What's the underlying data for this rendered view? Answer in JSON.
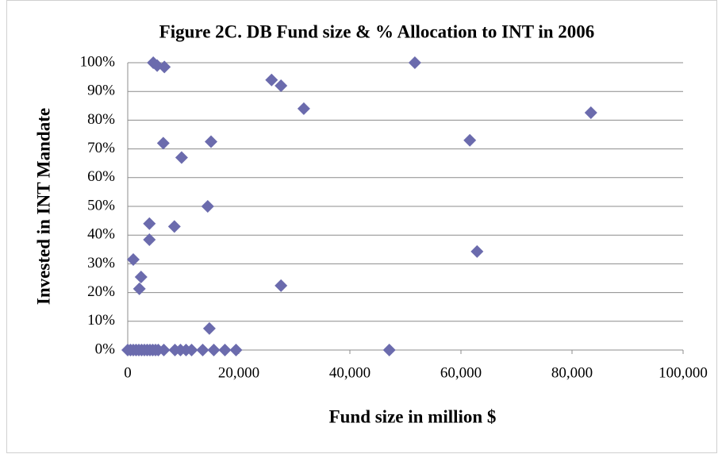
{
  "chart_data": {
    "type": "scatter",
    "title": "Figure 2C. DB Fund size & % Allocation to INT in 2006",
    "x_label": "Fund size in million $",
    "y_label": "Invested in INT Mandate",
    "color": "#6b6bad",
    "grid": true,
    "xlim": [
      0,
      100000
    ],
    "ylim": [
      0,
      100
    ],
    "xticks": [
      0,
      {
        "value": 20000,
        "label": "20,000"
      },
      {
        "value": 40000,
        "label": "40,000"
      },
      {
        "value": 60000,
        "label": "60,000"
      },
      {
        "value": 80000,
        "label": "80,000"
      },
      {
        "value": 100000,
        "label": "100,000"
      }
    ],
    "yticks": [
      {
        "value": 0,
        "label": "0%"
      },
      {
        "value": 10,
        "label": "10%"
      },
      {
        "value": 20,
        "label": "20%"
      },
      {
        "value": 30,
        "label": "30%"
      },
      {
        "value": 40,
        "label": "40%"
      },
      {
        "value": 50,
        "label": "50%"
      },
      {
        "value": 60,
        "label": "60%"
      },
      {
        "value": 70,
        "label": "70%"
      },
      {
        "value": 80,
        "label": "80%"
      },
      {
        "value": 90,
        "label": "90%"
      },
      {
        "value": 100,
        "label": "100%"
      }
    ],
    "x": [
      4600,
      5300,
      6600,
      25900,
      27600,
      51700,
      31700,
      83400,
      6400,
      15000,
      61600,
      9700,
      14400,
      3900,
      8400,
      3900,
      62900,
      1000,
      2400,
      2100,
      27600,
      14700,
      47100,
      0,
      500,
      1000,
      1500,
      2000,
      2500,
      3000,
      3500,
      4000,
      4500,
      5000,
      5500,
      6500,
      8500,
      9500,
      10500,
      11500,
      13500,
      15500,
      17500,
      19500
    ],
    "values": [
      100,
      99,
      98.5,
      94,
      92,
      100,
      84,
      82.6,
      72,
      72.5,
      73,
      67,
      50,
      44,
      43,
      38.4,
      34.3,
      31.5,
      25.4,
      21.3,
      22.4,
      7.5,
      0,
      0,
      0,
      0,
      0,
      0,
      0,
      0,
      0,
      0,
      0,
      0,
      0,
      0,
      0,
      0,
      0,
      0,
      0,
      0,
      0,
      0
    ]
  }
}
